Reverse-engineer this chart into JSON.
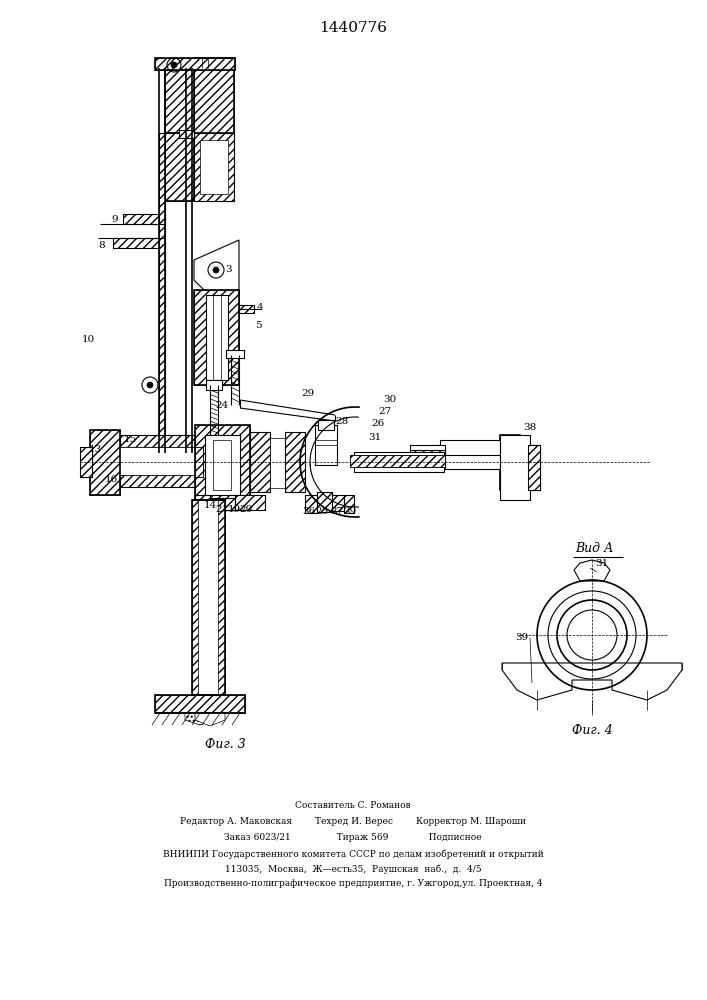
{
  "patent_number": "1440776",
  "fig3_caption": "Фиг. 3",
  "fig4_caption": "Фиг. 4",
  "vid_a_label": "Вид А",
  "background_color": "#ffffff",
  "footer_lines": [
    "Составитель С. Романов",
    "Редактор А. Маковская        Техред И. Верес        Корректор М. Шароши",
    "Заказ 6023/21                Тираж 569              Подписное",
    "ВНИИПИ Государственного комитета СССР по делам изобретений и открытий",
    "113035,  Москва,  Ж—есть35,  Раушская  наб.,  д.  4/5",
    "Производственно-полиграфическое предприятие, г. Ужгород,ул. Проектная, 4"
  ]
}
